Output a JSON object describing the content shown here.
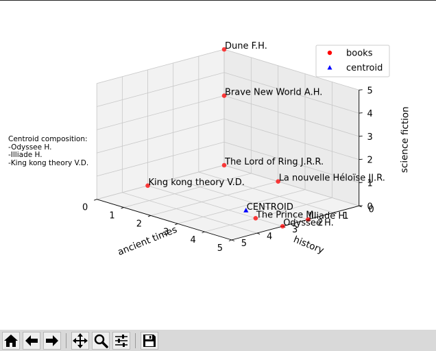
{
  "chart_data": {
    "type": "scatter",
    "projection": "3d",
    "xlabel": "history",
    "ylabel": "ancient times",
    "zlabel": "science fiction",
    "xlim": [
      0,
      5
    ],
    "ylim": [
      0,
      5
    ],
    "zlim": [
      0,
      5
    ],
    "xticks": [
      "0",
      "1",
      "2",
      "3",
      "4",
      "5"
    ],
    "yticks": [
      "0",
      "1",
      "2",
      "3",
      "4",
      "5"
    ],
    "zticks": [
      "0",
      "1",
      "2",
      "3",
      "4",
      "5"
    ],
    "grid": true,
    "legend": {
      "placement": "top-right",
      "entries": [
        {
          "label": "books",
          "marker": "circle",
          "color": "#ff0000"
        },
        {
          "label": "centroid",
          "marker": "triangle",
          "color": "#0000ff"
        }
      ]
    },
    "series": [
      {
        "name": "books",
        "color": "#ff0000",
        "points": [
          {
            "label": "Dune F.H.",
            "x": 0,
            "y": 0,
            "z": 5
          },
          {
            "label": "Brave New World A.H.",
            "x": 0,
            "y": 0,
            "z": 3
          },
          {
            "label": "La nouvelle Héloïse JJ.R.",
            "x": 0,
            "y": 2,
            "z": 0
          },
          {
            "label": "The Lord of Ring J.R.R.",
            "x": 0,
            "y": 0,
            "z": 0
          },
          {
            "label": "King kong theory V.D.",
            "x": 3,
            "y": 0,
            "z": 0
          },
          {
            "label": "Illiade H.",
            "x": 2,
            "y": 5,
            "z": 0
          },
          {
            "label": "The Prince M.",
            "x": 3,
            "y": 4,
            "z": 0
          },
          {
            "label": "Odyssee H.",
            "x": 3,
            "y": 5,
            "z": 0
          }
        ]
      },
      {
        "name": "centroid",
        "color": "#0000ff",
        "points": [
          {
            "label": "CENTROID",
            "x": 2.67,
            "y": 3.33,
            "z": 0
          }
        ]
      }
    ],
    "annotation": {
      "title": "Centroid composition:",
      "lines": [
        "-Odyssee H.",
        "-Illiade H.",
        "-King kong theory V.D."
      ]
    }
  },
  "toolbar": {
    "buttons": [
      {
        "name": "home-button",
        "icon": "home-icon"
      },
      {
        "name": "back-button",
        "icon": "arrow-left-icon"
      },
      {
        "name": "forward-button",
        "icon": "arrow-right-icon"
      },
      {
        "name": "pan-button",
        "icon": "move-icon"
      },
      {
        "name": "zoom-button",
        "icon": "magnifier-icon"
      },
      {
        "name": "configure-subplots-button",
        "icon": "sliders-icon"
      },
      {
        "name": "save-button",
        "icon": "floppy-disk-icon"
      }
    ]
  }
}
